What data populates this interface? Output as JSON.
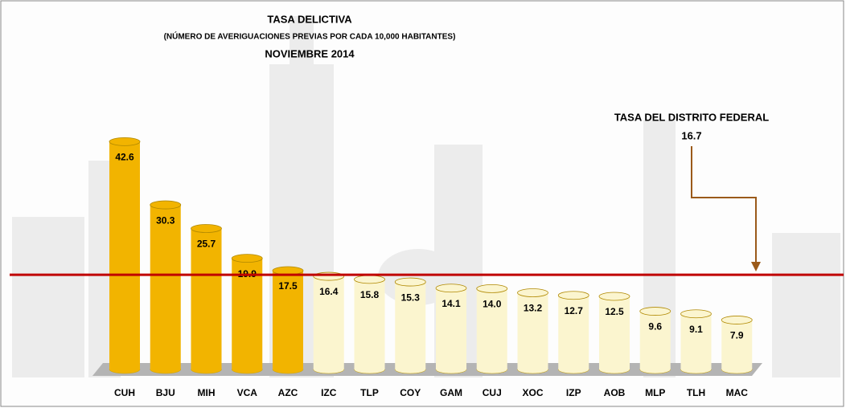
{
  "chart_data": {
    "type": "bar",
    "title": "TASA DELICTIVA",
    "subtitle": "(NÚMERO DE  AVERIGUACIONES PREVIAS POR CADA 10,000 HABITANTES)",
    "period": "NOVIEMBRE 2014",
    "categories": [
      "CUH",
      "BJU",
      "MIH",
      "VCA",
      "AZC",
      "IZC",
      "TLP",
      "COY",
      "GAM",
      "CUJ",
      "XOC",
      "IZP",
      "AOB",
      "MLP",
      "TLH",
      "MAC"
    ],
    "values": [
      42.6,
      30.3,
      25.7,
      19.9,
      17.5,
      16.4,
      15.8,
      15.3,
      14.1,
      14.0,
      13.2,
      12.7,
      12.5,
      9.6,
      9.1,
      7.9
    ],
    "value_labels": [
      "42.6",
      "30.3",
      "25.7",
      "19.9",
      "17.5",
      "16.4",
      "15.8",
      "15.3",
      "14.1",
      "14.0",
      "13.2",
      "12.7",
      "12.5",
      "9.6",
      "9.1",
      "7.9"
    ],
    "colors": [
      "#f2b400",
      "#f2b400",
      "#f2b400",
      "#f2b400",
      "#f2b400",
      "#fbf5cf",
      "#fbf5cf",
      "#fbf5cf",
      "#fbf5cf",
      "#fbf5cf",
      "#fbf5cf",
      "#fbf5cf",
      "#fbf5cf",
      "#fbf5cf",
      "#fbf5cf",
      "#fbf5cf"
    ],
    "reference_line": {
      "value": 16.7,
      "label": "TASA DEL DISTRITO  FEDERAL",
      "color": "#c00000"
    }
  }
}
